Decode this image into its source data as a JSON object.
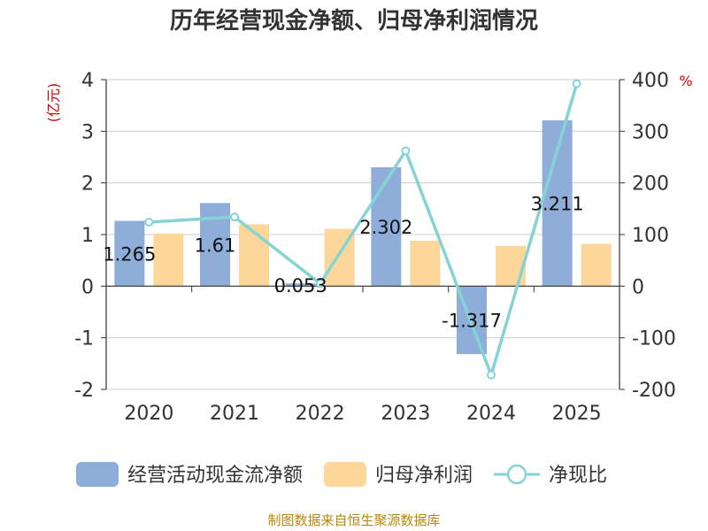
{
  "chart_data": {
    "type": "bar",
    "title": "历年经营现金净额、归母净利润情况",
    "categories": [
      "2020",
      "2021",
      "2022",
      "2023",
      "2024",
      "2025"
    ],
    "series": [
      {
        "name": "经营活动现金流净额",
        "kind": "bar",
        "axis": "left",
        "color": "#8eadd9",
        "values": [
          1.265,
          1.61,
          0.053,
          2.302,
          -1.317,
          3.211
        ],
        "labels": [
          "1.265",
          "1.61",
          "0.053",
          "2.302",
          "-1.317",
          "3.211"
        ]
      },
      {
        "name": "归母净利润",
        "kind": "bar",
        "axis": "left",
        "color": "#fdd79a",
        "values": [
          1.02,
          1.2,
          1.11,
          0.88,
          0.78,
          0.82
        ]
      },
      {
        "name": "净现比",
        "kind": "line",
        "axis": "right",
        "color": "#86d3d6",
        "values": [
          124,
          134,
          5,
          262,
          -172,
          392
        ]
      }
    ],
    "y_left": {
      "unit": "(亿元)",
      "min": -2,
      "max": 4,
      "ticks": [
        4,
        3,
        2,
        1,
        0,
        -1,
        -2
      ]
    },
    "y_right": {
      "unit": "%",
      "min": -200,
      "max": 400,
      "ticks": [
        400,
        300,
        200,
        100,
        0,
        -100,
        -200
      ]
    },
    "grid": true,
    "legend_position": "bottom",
    "source": "制图数据来自恒生聚源数据库"
  }
}
